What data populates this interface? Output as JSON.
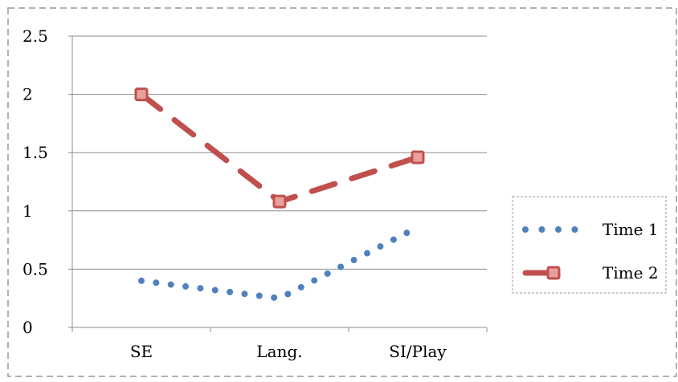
{
  "chart_data": {
    "type": "line",
    "categories": [
      "SE",
      "Lang.",
      "SI/Play"
    ],
    "series": [
      {
        "name": "Time 1",
        "values": [
          0.4,
          0.25,
          0.86
        ],
        "color": "#4f81bd",
        "style": "dotted",
        "marker": "none"
      },
      {
        "name": "Time 2",
        "values": [
          2.0,
          1.08,
          1.46
        ],
        "color": "#c0504d",
        "style": "dashed",
        "marker": "square"
      }
    ],
    "ylim": [
      0,
      2.5
    ],
    "yticks": [
      0,
      0.5,
      1,
      1.5,
      2,
      2.5
    ],
    "ytick_labels": [
      "0",
      "0.5",
      "1",
      "1.5",
      "2",
      "2.5"
    ],
    "grid": true,
    "legend_position": "right",
    "title": "",
    "xlabel": "",
    "ylabel": ""
  }
}
